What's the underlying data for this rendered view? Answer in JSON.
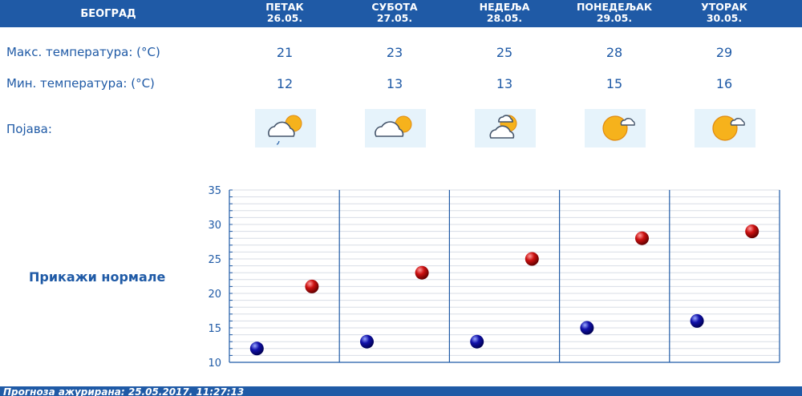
{
  "header": {
    "city": "БЕОГРАД",
    "days": [
      {
        "name": "ПЕТАК",
        "date": "26.05."
      },
      {
        "name": "СУБОТА",
        "date": "27.05."
      },
      {
        "name": "НЕДЕЉА",
        "date": "28.05."
      },
      {
        "name": "ПОНЕДЕЉАК",
        "date": "29.05."
      },
      {
        "name": "УТОРАК",
        "date": "30.05."
      }
    ]
  },
  "rows": {
    "max_label": "Макс. температура: (°C)",
    "min_label": "Мин. температура: (°C)",
    "wx_label": "Појава:",
    "max": [
      "21",
      "23",
      "25",
      "28",
      "29"
    ],
    "min": [
      "12",
      "13",
      "13",
      "15",
      "16"
    ]
  },
  "icons": [
    "partly-cloudy-light-rain-icon",
    "partly-cloudy-icon",
    "partly-cloudy-icon",
    "mostly-sunny-icon",
    "mostly-sunny-icon"
  ],
  "normals_link": "Прикажи нормале",
  "footer": "Прогноза ажурирана:  25.05.2017. 11:27:13",
  "colors": {
    "brand_blue": "#1f5aa6",
    "max_dot": "#cc1111",
    "min_dot": "#1111aa",
    "grid": "#d8dde6"
  },
  "chart_data": {
    "type": "scatter",
    "categories": [
      "26.05.",
      "27.05.",
      "28.05.",
      "29.05.",
      "30.05."
    ],
    "series": [
      {
        "values": [
          21,
          23,
          25,
          28,
          29
        ]
      },
      {
        "values": [
          12,
          13,
          13,
          15,
          16
        ]
      }
    ],
    "ylim": [
      10,
      35
    ],
    "yticks": [
      10,
      15,
      20,
      25,
      30,
      35
    ],
    "grid": true
  }
}
